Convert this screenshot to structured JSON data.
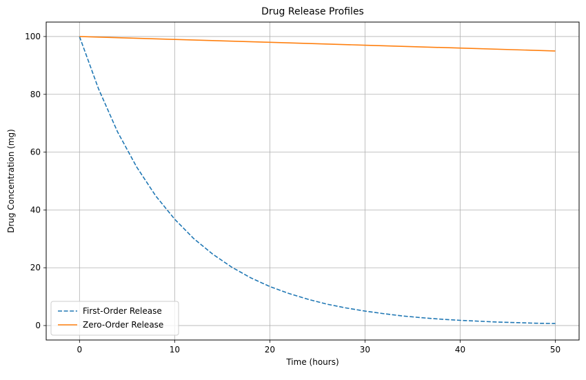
{
  "chart_data": {
    "type": "line",
    "title": "Drug Release Profiles",
    "xlabel": "Time (hours)",
    "ylabel": "Drug Concentration (mg)",
    "xlim": [
      -3.5,
      52.5
    ],
    "ylim": [
      -5,
      105
    ],
    "xticks": [
      0,
      10,
      20,
      30,
      40,
      50
    ],
    "yticks": [
      0,
      20,
      40,
      60,
      80,
      100
    ],
    "grid": true,
    "legend_position": "lower-left",
    "series": [
      {
        "name": "First-Order Release",
        "color": "#1f77b4",
        "style": "dashed",
        "x": [
          0,
          2,
          4,
          6,
          8,
          10,
          12,
          14,
          16,
          18,
          20,
          22,
          24,
          26,
          28,
          30,
          32,
          34,
          36,
          38,
          40,
          42,
          44,
          46,
          48,
          50
        ],
        "y": [
          100,
          81.9,
          67.0,
          54.9,
          44.9,
          36.8,
          30.1,
          24.7,
          20.2,
          16.5,
          13.5,
          11.1,
          9.1,
          7.4,
          6.1,
          5.0,
          4.1,
          3.3,
          2.7,
          2.2,
          1.8,
          1.5,
          1.2,
          1.0,
          0.8,
          0.7
        ]
      },
      {
        "name": "Zero-Order Release",
        "color": "#ff7f0e",
        "style": "solid",
        "x": [
          0,
          10,
          20,
          30,
          40,
          50
        ],
        "y": [
          100,
          99,
          98,
          97,
          96,
          95
        ]
      }
    ]
  }
}
